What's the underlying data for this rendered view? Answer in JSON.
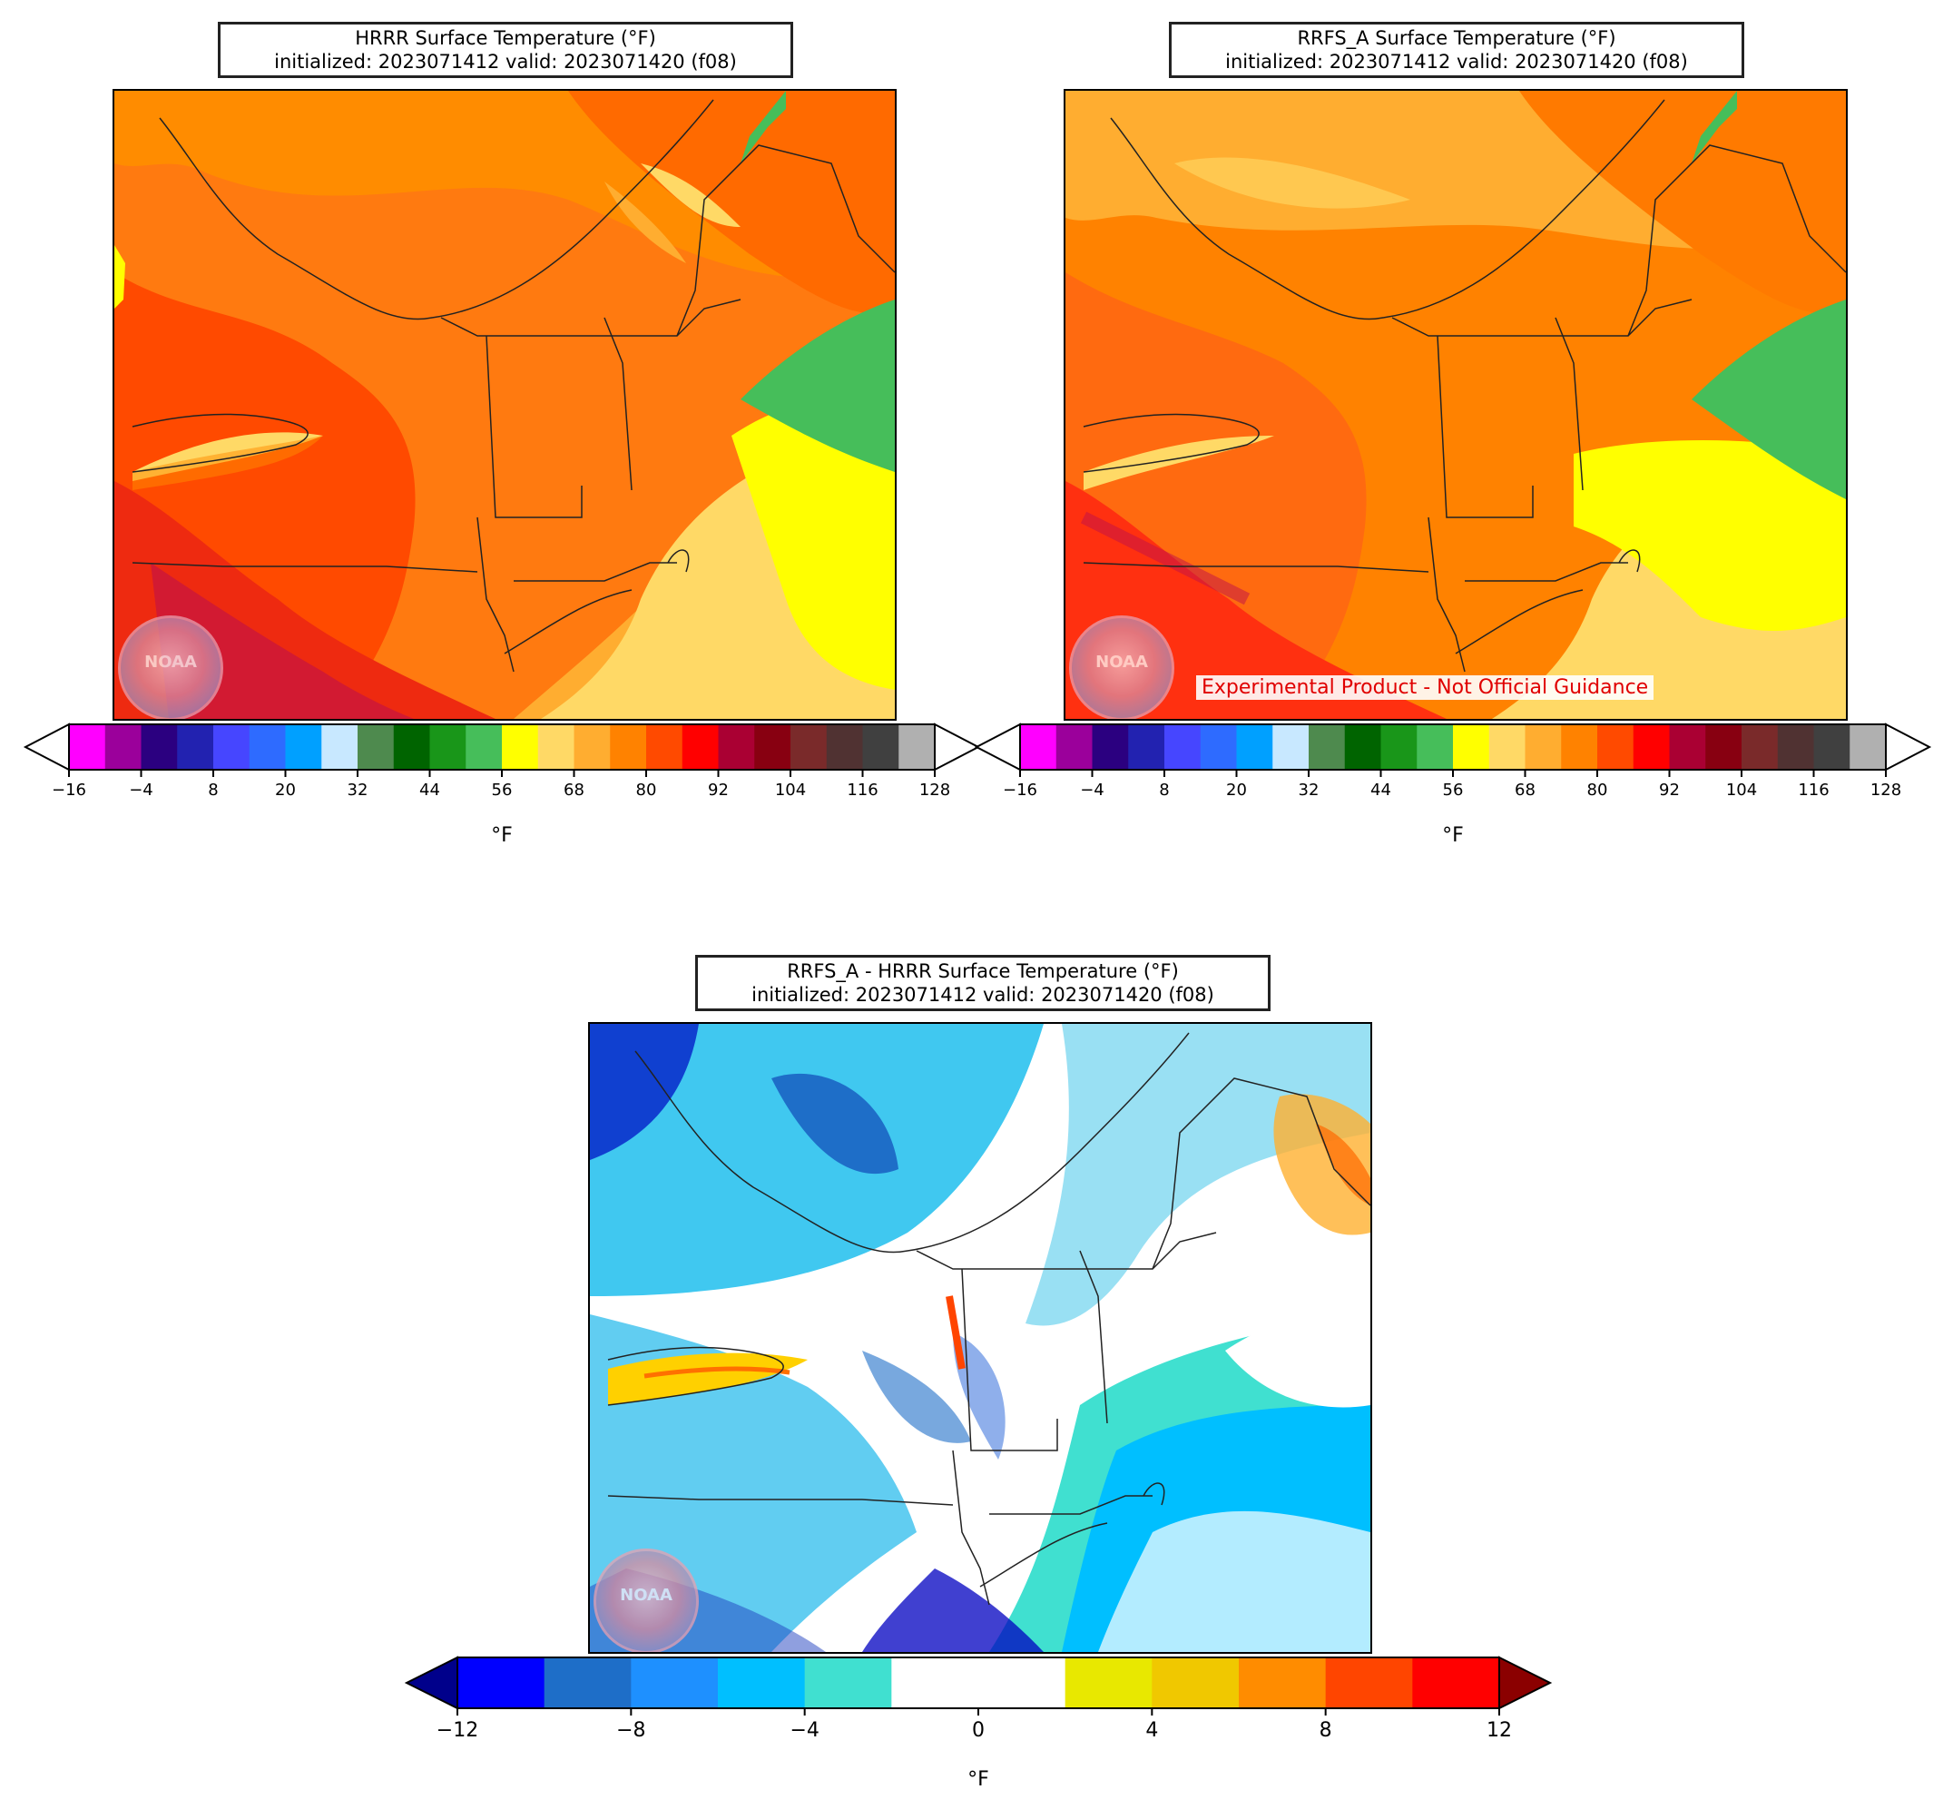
{
  "panels": {
    "hrrr": {
      "title_line1": "HRRR Surface Temperature (°F)",
      "title_line2": "initialized: 2023071412 valid: 2023071420 (f08)"
    },
    "rrfs": {
      "title_line1": "RRFS_A Surface Temperature (°F)",
      "title_line2": "initialized: 2023071412 valid: 2023071420 (f08)",
      "disclaimer": "Experimental Product - Not Official Guidance"
    },
    "diff": {
      "title_line1": "RRFS_A - HRRR Surface Temperature (°F)",
      "title_line2": "initialized: 2023071412 valid: 2023071420 (f08)"
    }
  },
  "logo_text": "NOAA",
  "temp_colorbar": {
    "unit": "°F",
    "ticks": [
      "−16",
      "−4",
      "8",
      "20",
      "32",
      "44",
      "56",
      "68",
      "80",
      "92",
      "104",
      "116",
      "128"
    ],
    "colors": [
      "#ff00ff",
      "#9b009b",
      "#2b0080",
      "#2222b0",
      "#4646ff",
      "#2e6bff",
      "#00a0ff",
      "#c8e8ff",
      "#4e8a4e",
      "#006400",
      "#199619",
      "#46be5a",
      "#ffff00",
      "#ffd966",
      "#ffad30",
      "#ff8200",
      "#ff4a00",
      "#ff0000",
      "#aa0033",
      "#880011",
      "#7a2a2a",
      "#503232",
      "#404040",
      "#b0b0b0"
    ]
  },
  "diff_colorbar": {
    "unit": "°F",
    "ticks": [
      "−12",
      "−8",
      "−4",
      "0",
      "4",
      "8",
      "12"
    ],
    "colors": [
      "#0000ff",
      "#1e6ec8",
      "#1e90ff",
      "#00bfff",
      "#40e0d0",
      "#ffffff",
      "#ffffff",
      "#e8e800",
      "#f0c800",
      "#ff8c00",
      "#ff4500",
      "#ff0000"
    ],
    "under_color": "#00008b",
    "over_color": "#8b0000"
  }
}
